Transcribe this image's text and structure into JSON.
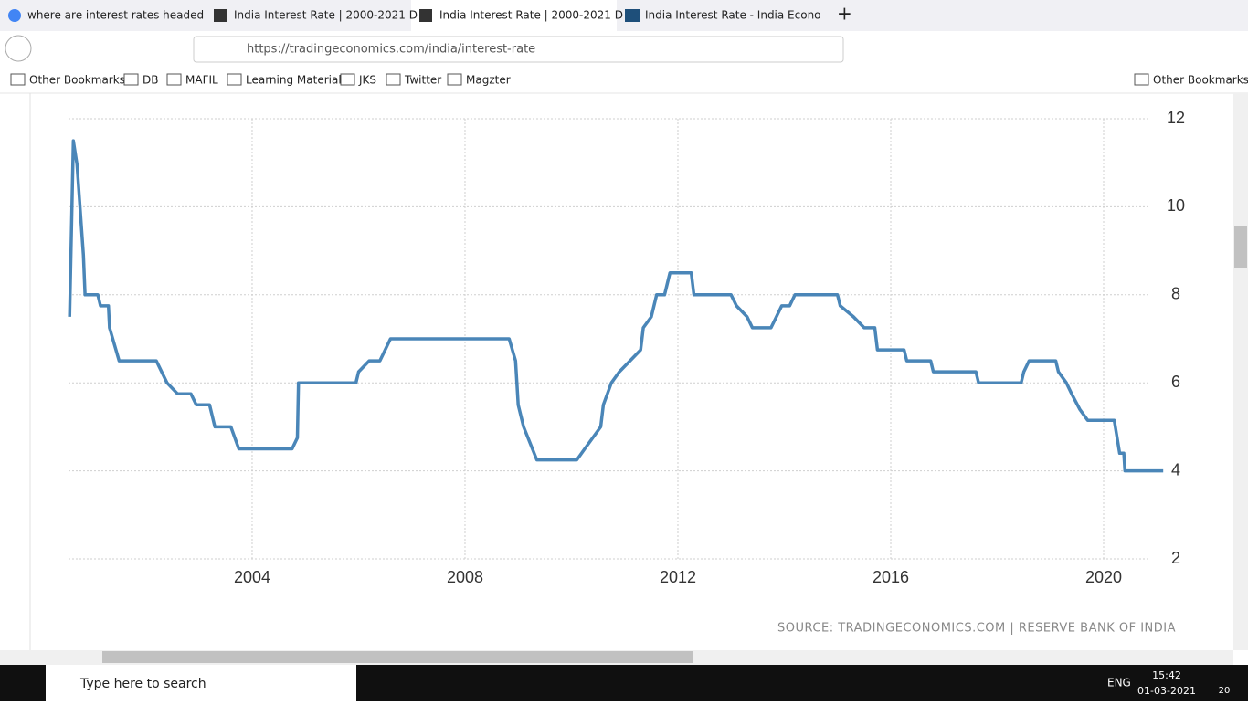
{
  "tabs": [
    "where are interest rates headed",
    "India Interest Rate | 2000-2021 D",
    "India Interest Rate | 2000-2021 D",
    "India Interest Rate - India Econo"
  ],
  "address": "https://tradingeconomics.com/india/interest-rate",
  "bookmarks": [
    "Other Bookmarks",
    "DB",
    "MAFIL",
    "Learning Material",
    "JKS",
    "Twitter",
    "Magzter"
  ],
  "bookmarks_right": "Other Bookmarks",
  "chart_data": {
    "type": "line",
    "color": "#4a86b8",
    "x": [
      2000.57,
      2000.64,
      2000.71,
      2000.83,
      2000.86,
      2001.1,
      2001.15,
      2001.3,
      2001.32,
      2001.5,
      2002.2,
      2002.4,
      2002.6,
      2002.85,
      2002.95,
      2003.2,
      2003.3,
      2003.6,
      2003.75,
      2004.75,
      2004.85,
      2004.87,
      2005.95,
      2006.0,
      2006.2,
      2006.4,
      2006.6,
      2008.83,
      2008.95,
      2009.0,
      2009.1,
      2009.35,
      2010.1,
      2010.25,
      2010.4,
      2010.55,
      2010.6,
      2010.75,
      2010.9,
      2011.1,
      2011.3,
      2011.35,
      2011.5,
      2011.6,
      2011.75,
      2011.85,
      2012.25,
      2012.3,
      2013.0,
      2013.1,
      2013.3,
      2013.4,
      2013.75,
      2013.85,
      2013.95,
      2014.1,
      2014.2,
      2015.0,
      2015.05,
      2015.3,
      2015.5,
      2015.7,
      2015.75,
      2016.25,
      2016.3,
      2016.75,
      2016.8,
      2017.6,
      2017.65,
      2018.45,
      2018.5,
      2018.6,
      2019.1,
      2019.15,
      2019.3,
      2019.4,
      2019.55,
      2019.7,
      2020.2,
      2020.3,
      2020.38,
      2020.4,
      2021.12
    ],
    "values": [
      7.5,
      11.5,
      10.96,
      8.9,
      8.0,
      8.0,
      7.75,
      7.75,
      7.25,
      6.5,
      6.5,
      6.0,
      5.75,
      5.75,
      5.5,
      5.5,
      5.0,
      5.0,
      4.5,
      4.5,
      4.75,
      6.0,
      6.0,
      6.25,
      6.5,
      6.5,
      7.0,
      7.0,
      6.5,
      5.5,
      5.0,
      4.25,
      4.25,
      4.5,
      4.75,
      5.0,
      5.5,
      6.0,
      6.25,
      6.5,
      6.75,
      7.25,
      7.5,
      8.0,
      8.0,
      8.5,
      8.5,
      8.0,
      8.0,
      7.75,
      7.5,
      7.25,
      7.25,
      7.5,
      7.75,
      7.75,
      8.0,
      8.0,
      7.75,
      7.5,
      7.25,
      7.25,
      6.75,
      6.75,
      6.5,
      6.5,
      6.25,
      6.25,
      6.0,
      6.0,
      6.25,
      6.5,
      6.5,
      6.25,
      6.0,
      5.75,
      5.4,
      5.15,
      5.15,
      4.4,
      4.4,
      4.0,
      4.0
    ],
    "xlim": [
      2000.5,
      2021.2
    ],
    "ylim": [
      2,
      12
    ],
    "xticks": [
      2004,
      2008,
      2012,
      2016,
      2020
    ],
    "yticks": [
      2,
      4,
      6,
      8,
      10,
      12
    ],
    "grid": true,
    "source": "SOURCE: TRADINGECONOMICS.COM  |  RESERVE BANK OF INDIA"
  },
  "taskbar": {
    "search": "Type here to search",
    "language": "ENG",
    "time": "15:42",
    "date": "01-03-2021",
    "notifications": "20"
  }
}
